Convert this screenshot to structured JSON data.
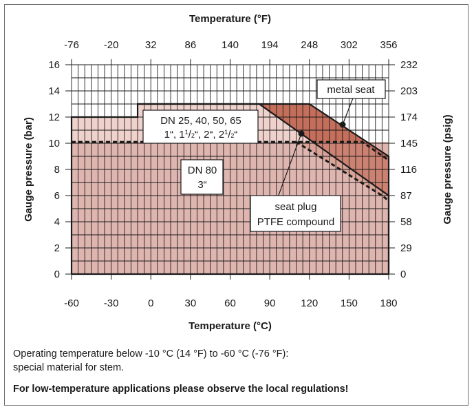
{
  "chart_data": {
    "type": "area",
    "title": "",
    "xlabel": "Temperature (°C)",
    "x2label": "Temperature (°F)",
    "ylabel": "Gauge pressure (bar)",
    "y2label": "Gauge pressure (psig)",
    "xlim": [
      -60,
      180
    ],
    "ylim": [
      0,
      16
    ],
    "grid": true,
    "x_ticks": [
      -60,
      -30,
      0,
      30,
      60,
      90,
      120,
      150,
      180
    ],
    "x2_ticks": [
      "-76",
      "-20",
      "32",
      "86",
      "140",
      "194",
      "248",
      "302",
      "356"
    ],
    "y_ticks": [
      0,
      2,
      4,
      6,
      8,
      10,
      12,
      14,
      16
    ],
    "y2_ticks": [
      "0",
      "29",
      "58",
      "87",
      "116",
      "145",
      "174",
      "203",
      "232"
    ],
    "series": [
      {
        "name": "DN 25, 40, 50, 65 / 1\", 1½\", 2\", 2½\"",
        "style": "solid",
        "x": [
          -60,
          -60,
          -10,
          -10,
          82,
          180,
          180
        ],
        "y": [
          0,
          12,
          12,
          13,
          13,
          6,
          0
        ]
      },
      {
        "name": "metal seat",
        "style": "solid",
        "x": [
          -60,
          -60,
          -10,
          -10,
          120,
          180,
          180
        ],
        "y": [
          0,
          12,
          12,
          13,
          13,
          9,
          0
        ]
      },
      {
        "name": "DN 80 / 3\"",
        "style": "dashed",
        "x": [
          -60,
          82,
          110,
          160,
          180
        ],
        "y": [
          10.1,
          10.1,
          10.1,
          10.1,
          8.7
        ]
      },
      {
        "name": "seat plug PTFE compound",
        "style": "dashed",
        "x": [
          110,
          175,
          180
        ],
        "y": [
          10.1,
          6.0,
          5.6
        ]
      }
    ],
    "annotations": {
      "dn_small_line1": "DN 25, 40, 50, 65",
      "dn_small_line2a": "1“, 1",
      "dn_small_half1": "1",
      "dn_small_half2": "2",
      "dn_small_line2b": "“, 2“, 2",
      "dn_small_line2c": "“",
      "dn80_line1": "DN 80",
      "dn80_line2": "3“",
      "metal_seat": "metal seat",
      "seat_plug_line1": "seat plug",
      "seat_plug_line2": "PTFE compound"
    },
    "colors": {
      "base_fill": "#dfb5b0",
      "upper_fill": "#f0d2cc",
      "metal_fill": "#c46e5c",
      "metal_fill_lower": "#d49485",
      "grid": "#1a1a1a",
      "outline": "#1a1a1a"
    }
  },
  "notes": {
    "line1": "Operating temperature below -10 °C (14 °F) to -60 °C (-76 °F):",
    "line2": "special material for stem.",
    "line3": "For low-temperature applications please observe the local regulations!"
  }
}
